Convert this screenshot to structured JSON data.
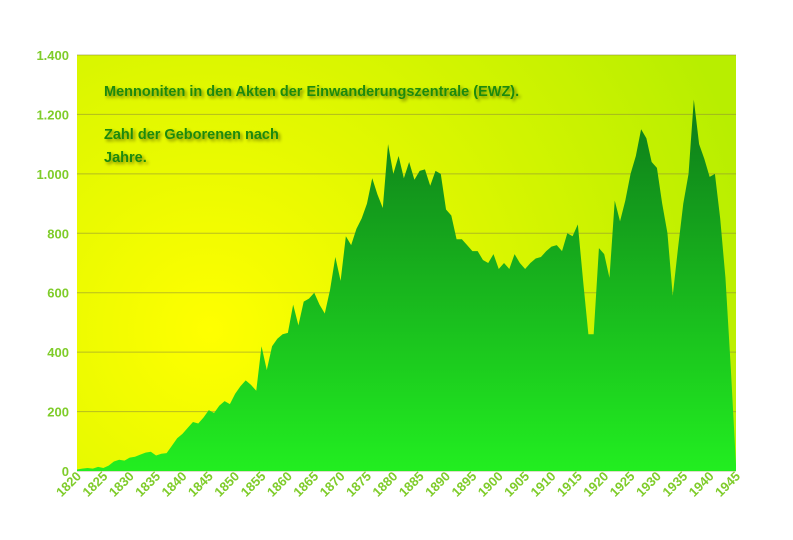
{
  "chart_data": {
    "type": "area",
    "title": "Mennoniten in den Akten der Einwanderungszentrale (EWZ).",
    "subtitle_lines": [
      "Zahl der Geborenen nach",
      "Jahre."
    ],
    "xlabel": "",
    "ylabel": "",
    "xlim": [
      1820,
      1945
    ],
    "ylim": [
      0,
      1400
    ],
    "y_ticks": [
      0,
      200,
      400,
      600,
      800,
      1000,
      1200,
      1400
    ],
    "y_tick_labels": [
      "0",
      "200",
      "400",
      "600",
      "800",
      "1.000",
      "1.200",
      "1.400"
    ],
    "x_ticks": [
      1820,
      1825,
      1830,
      1835,
      1840,
      1845,
      1850,
      1855,
      1860,
      1865,
      1870,
      1875,
      1880,
      1885,
      1890,
      1895,
      1900,
      1905,
      1910,
      1915,
      1920,
      1925,
      1930,
      1935,
      1940,
      1945
    ],
    "x_tick_labels": [
      "1820",
      "1825",
      "1830",
      "1835",
      "1840",
      "1845",
      "1850",
      "1855",
      "1860",
      "1865",
      "1870",
      "1875",
      "1880",
      "1885",
      "1890",
      "1895",
      "1900",
      "1905",
      "1910",
      "1915",
      "1920",
      "1925",
      "1930",
      "1935",
      "1940",
      "1945"
    ],
    "grid": true,
    "colors": {
      "plot_bg_warm": "#ffff00",
      "plot_bg_cool": "#b8ee00",
      "area_top": "#0e7a1a",
      "area_bottom": "#22ee20",
      "tick_text": "#7fcc2a",
      "title_text": "#1f8a10"
    },
    "series": [
      {
        "x": [
          1820,
          1821,
          1822,
          1823,
          1824,
          1825,
          1826,
          1827,
          1828,
          1829,
          1830,
          1831,
          1832,
          1833,
          1834,
          1835,
          1836,
          1837,
          1838,
          1839,
          1840,
          1841,
          1842,
          1843,
          1844,
          1845,
          1846,
          1847,
          1848,
          1849,
          1850,
          1851,
          1852,
          1853,
          1854,
          1855,
          1856,
          1857,
          1858,
          1859,
          1860,
          1861,
          1862,
          1863,
          1864,
          1865,
          1866,
          1867,
          1868,
          1869,
          1870,
          1871,
          1872,
          1873,
          1874,
          1875,
          1876,
          1877,
          1878,
          1879,
          1880,
          1881,
          1882,
          1883,
          1884,
          1885,
          1886,
          1887,
          1888,
          1889,
          1890,
          1891,
          1892,
          1893,
          1894,
          1895,
          1896,
          1897,
          1898,
          1899,
          1900,
          1901,
          1902,
          1903,
          1904,
          1905,
          1906,
          1907,
          1908,
          1909,
          1910,
          1911,
          1912,
          1913,
          1914,
          1915,
          1916,
          1917,
          1918,
          1919,
          1920,
          1921,
          1922,
          1923,
          1924,
          1925,
          1926,
          1927,
          1928,
          1929,
          1930,
          1931,
          1932,
          1933,
          1934,
          1935,
          1936,
          1937,
          1938,
          1939,
          1940,
          1941,
          1942,
          1943,
          1944,
          1945
        ],
        "values": [
          5,
          8,
          10,
          8,
          14,
          10,
          18,
          32,
          38,
          35,
          45,
          48,
          55,
          62,
          65,
          52,
          58,
          60,
          85,
          110,
          125,
          145,
          165,
          160,
          180,
          205,
          195,
          220,
          235,
          225,
          260,
          285,
          305,
          290,
          270,
          420,
          340,
          420,
          445,
          460,
          465,
          560,
          490,
          570,
          580,
          600,
          560,
          530,
          610,
          720,
          640,
          790,
          760,
          815,
          850,
          900,
          985,
          930,
          885,
          1100,
          1000,
          1060,
          985,
          1040,
          980,
          1010,
          1015,
          960,
          1010,
          1000,
          880,
          860,
          780,
          780,
          760,
          740,
          740,
          710,
          700,
          730,
          680,
          700,
          680,
          730,
          700,
          680,
          700,
          715,
          720,
          740,
          755,
          760,
          740,
          800,
          790,
          830,
          640,
          460,
          460,
          750,
          730,
          650,
          910,
          840,
          910,
          1000,
          1060,
          1150,
          1120,
          1040,
          1020,
          900,
          800,
          590,
          750,
          900,
          1000,
          1250,
          1100,
          1050,
          990,
          1000,
          850,
          650,
          350,
          20
        ]
      }
    ]
  }
}
